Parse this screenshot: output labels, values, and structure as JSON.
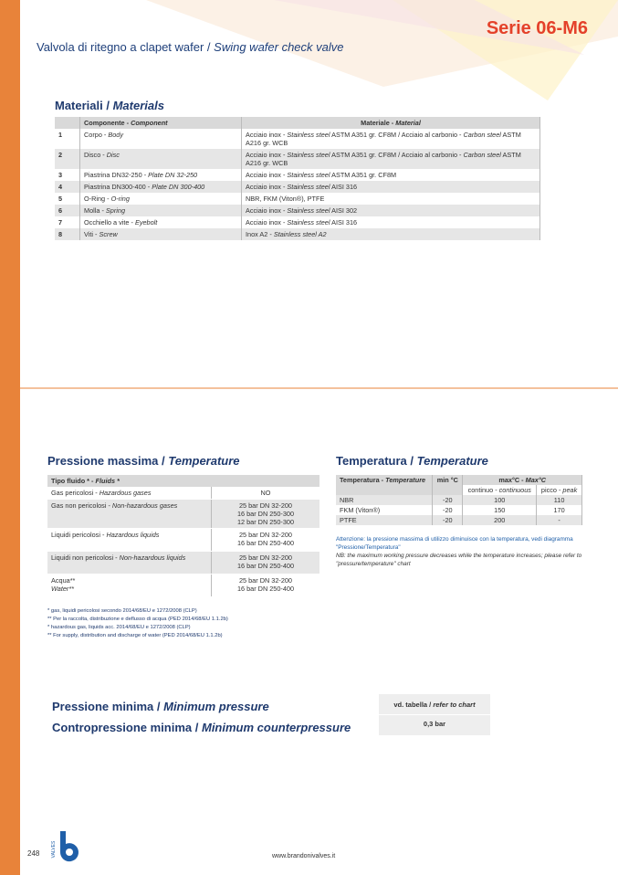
{
  "header": {
    "series": "Serie 06-M6",
    "subtitle": [
      "Valvola di ritegno a clapet wafer / ",
      "Swing wafer check valve"
    ]
  },
  "materials": {
    "title": [
      "Materiali / ",
      "Materials"
    ],
    "columns": [
      [
        "Componente - ",
        "Component"
      ],
      [
        "Materiale - ",
        "Material"
      ]
    ],
    "rows": [
      [
        "1",
        [
          "Corpo - ",
          "Body"
        ],
        [
          "Acciaio inox - ",
          "Stainless steel",
          " ASTM A351 gr. CF8M / Acciaio al carbonio - ",
          "Carbon steel",
          " ASTM A216 gr. WCB"
        ]
      ],
      [
        "2",
        [
          "Disco - ",
          "Disc"
        ],
        [
          "Acciaio inox - ",
          "Stainless steel",
          " ASTM A351 gr. CF8M / Acciaio al carbonio - ",
          "Carbon steel",
          " ASTM A216 gr. WCB"
        ]
      ],
      [
        "3",
        [
          "Piastrina DN32-250 - ",
          "Plate DN 32-250"
        ],
        [
          "Acciaio inox - ",
          "Stainless steel",
          " ASTM A351 gr. CF8M"
        ]
      ],
      [
        "4",
        [
          "Piastrina DN300-400 - ",
          "Plate DN 300-400"
        ],
        [
          "Acciaio inox - ",
          "Stainless steel",
          " AISI 316"
        ]
      ],
      [
        "5",
        [
          "O-Ring - ",
          "O-ring"
        ],
        "NBR, FKM (Viton®), PTFE"
      ],
      [
        "6",
        [
          "Molla - ",
          "Spring"
        ],
        [
          "Acciaio inox - ",
          "Stainless steel",
          " AISI 302"
        ]
      ],
      [
        "7",
        [
          "Occhiello a vite - ",
          "Eyebolt"
        ],
        [
          "Acciaio inox - ",
          "Stainless steel",
          " AISI 316"
        ]
      ],
      [
        "8",
        [
          "Viti - ",
          "Screw"
        ],
        [
          "Inox A2 - ",
          "Stainless steel A2"
        ]
      ]
    ]
  },
  "pressure": {
    "title": [
      "Pressione massima / ",
      "Temperature"
    ],
    "column": [
      "Tipo fluido * - ",
      "Fluids *"
    ],
    "rows": [
      [
        [
          "Gas pericolosi  - ",
          "Hazardous gases"
        ],
        [
          "NO"
        ]
      ],
      [
        [
          "Gas non pericolosi  - ",
          "Non-hazardous gases"
        ],
        [
          "25 bar DN 32-200",
          "16 bar DN 250-300",
          "12 bar DN 250-300"
        ]
      ],
      [
        [
          "Liquidi pericolosi - ",
          "Hazardous liquids"
        ],
        [
          "25 bar DN 32-200",
          "16 bar DN 250-400"
        ]
      ],
      [
        [
          "Liquidi non pericolosi - ",
          "Non-hazardous liquids"
        ],
        [
          "25 bar DN 32-200",
          "16 bar DN 250-400"
        ]
      ],
      [
        [
          "Acqua**",
          "Water**"
        ],
        [
          "25 bar DN 32-200",
          "16 bar DN 250-400"
        ]
      ]
    ],
    "footnotes": [
      "* gas, liquidi pericolosi secondo 2014/68/EU e 1272/2008 (CLP)",
      "** Per la raccolta, distribuzione e deflusso di acqua (PED 2014/68/EU 1.1.2b)",
      "* hazardous gas, liquids acc. 2014/68/EU e 1272/2008 (CLP)",
      "** For  supply, distribution and discharge of water (PED 2014/68/EU 1.1.2b)"
    ]
  },
  "temperature": {
    "title": [
      "Temperatura / ",
      "Temperature"
    ],
    "columns": [
      [
        "Temperatura - ",
        "Temperature"
      ],
      "min °C",
      [
        "max°C - ",
        "Max°C"
      ]
    ],
    "subcolumns": [
      [
        "continuo - ",
        "continuous"
      ],
      [
        "picco - ",
        "peak"
      ]
    ],
    "rows": [
      [
        "NBR",
        "-20",
        "100",
        "110"
      ],
      [
        "FKM (Viton®)",
        "-20",
        "150",
        "170"
      ],
      [
        "PTFE",
        "-20",
        "200",
        "-"
      ]
    ],
    "note_it": "Attenzione: la pressione massima di utilizzo diminuisce con la temperatura, vedi diagramma \"Pressione/Temperatura\"",
    "note_en": "NB: the maximum working pressure decreases while the temperature increases; please refer to \"pressure/temperature\" chart"
  },
  "minimum": {
    "pressure": [
      "Pressione minima / ",
      "Minimum pressure"
    ],
    "counterpressure": [
      "Contropressione minima / ",
      "Minimum counterpressure"
    ],
    "reference": [
      "vd. tabella / ",
      "refer to chart"
    ],
    "value": "0,3 bar"
  },
  "footer": {
    "page": "248",
    "website": "www.brandonivalves.it",
    "logo": "VALVES"
  }
}
